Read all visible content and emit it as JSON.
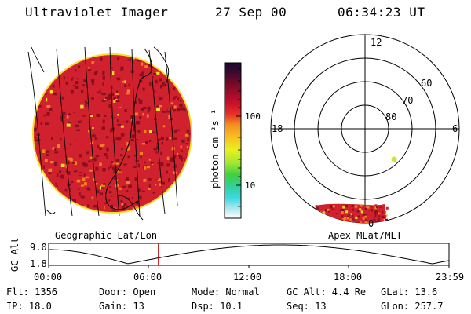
{
  "header": {
    "instrument": "Ultraviolet Imager",
    "date": "27 Sep 00",
    "time": "06:34:23 UT"
  },
  "colorbar": {
    "label": "photon cm⁻²s⁻¹",
    "tick_100": "100",
    "tick_10": "10"
  },
  "polar_plot": {
    "mlt_labels": {
      "top": "12",
      "left": "18",
      "right": "6",
      "bottom": "0"
    },
    "lat_labels": {
      "outer": "60",
      "middle": "70",
      "inner": "80"
    }
  },
  "panel_labels": {
    "left": "Geographic Lat/Lon",
    "right": "Apex MLat/MLT"
  },
  "altitude_plot": {
    "ylabel": "GC Alt",
    "ymax": "9.0",
    "ymin": "1.8",
    "x_ticks": [
      "00:00",
      "06:00",
      "12:00",
      "18:00",
      "23:59"
    ],
    "current_hour": 6.573
  },
  "info": {
    "flt": "Flt: 1356",
    "door": "Door: Open",
    "mode": "Mode: Normal",
    "gc_alt": "GC Alt: 4.4 Re",
    "glat": "GLat: 13.6",
    "ip": "IP: 18.0",
    "gain": "Gain: 13",
    "dsp": "Dsp:   10.1",
    "seq": "Seq: 13",
    "glon": "GLon: 257.7"
  },
  "colors": {
    "disk_base": "#d1202e",
    "disk_dark": "#8a0f1f",
    "disk_orange": "#f08020",
    "disk_yellow": "#f4e02a",
    "timeline_marker": "#c00000"
  }
}
